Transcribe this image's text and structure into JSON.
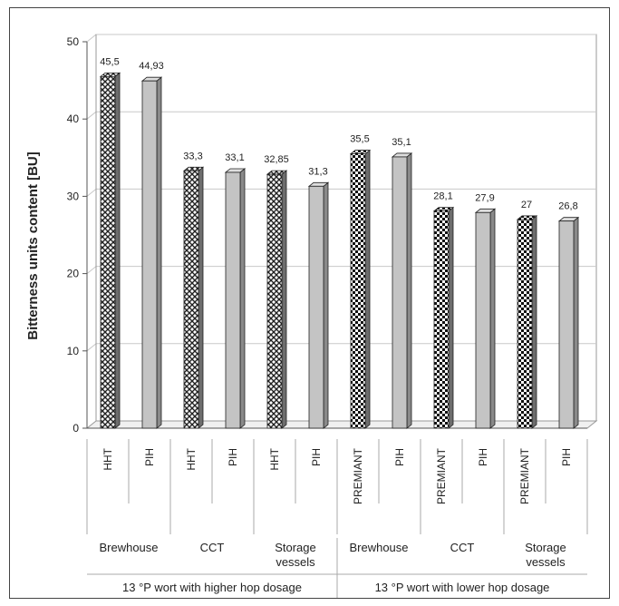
{
  "chart_data": {
    "type": "bar",
    "ylabel": "Bitterness units content [BU]",
    "ylim": [
      0,
      50
    ],
    "yticks": [
      0,
      10,
      20,
      30,
      40,
      50
    ],
    "grid": true,
    "legend": "none",
    "categories": [
      "HHT",
      "PIH",
      "HHT",
      "PIH",
      "HHT",
      "PIH",
      "PREMIANT",
      "PIH",
      "PREMIANT",
      "PIH",
      "PREMIANT",
      "PIH"
    ],
    "values": [
      45.5,
      44.93,
      33.3,
      33.1,
      32.85,
      31.3,
      35.5,
      35.1,
      28.1,
      27.9,
      27,
      26.8
    ],
    "value_labels": [
      "45,5",
      "44,93",
      "33,3",
      "33,1",
      "32,85",
      "31,3",
      "35,5",
      "35,1",
      "28,1",
      "27,9",
      "27",
      "26,8"
    ],
    "patterns": [
      "diamond",
      "solid",
      "diamond",
      "solid",
      "diamond",
      "solid",
      "checker",
      "solid",
      "checker",
      "solid",
      "checker",
      "solid"
    ],
    "stages": [
      {
        "lines": [
          "Brewhouse"
        ]
      },
      {
        "lines": [
          "CCT"
        ]
      },
      {
        "lines": [
          "Storage",
          "vessels"
        ]
      },
      {
        "lines": [
          "Brewhouse"
        ]
      },
      {
        "lines": [
          "CCT"
        ]
      },
      {
        "lines": [
          "Storage",
          "vessels"
        ]
      }
    ],
    "groups": [
      "13 °P wort with higher hop dosage",
      "13 °P wort with lower hop dosage"
    ]
  },
  "colors": {
    "bar_gray": "#c4c4c4",
    "bar_gray_top": "#dedede",
    "bar_gray_side": "#8a8a8a",
    "axis": "#555555",
    "grid": "#c8c8c8"
  }
}
